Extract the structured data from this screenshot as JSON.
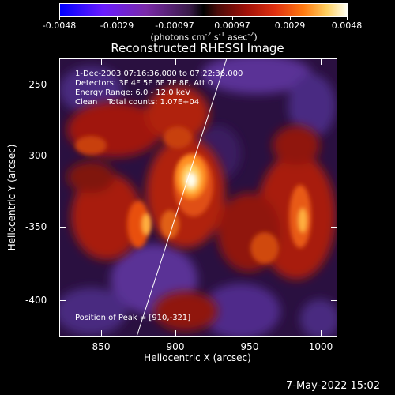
{
  "colorbar": {
    "ticks": [
      "-0.0048",
      "-0.0029",
      "-0.00097",
      "0.00097",
      "0.0029",
      "0.0048"
    ],
    "units_base": "(photons cm",
    "units_exp1": "-2",
    "units_mid": " s",
    "units_exp2": "-1",
    "units_mid2": " asec",
    "units_exp3": "-2",
    "units_end": ")"
  },
  "title": "Reconstructed RHESSI Image",
  "annotations": {
    "time_range": "1-Dec-2003 07:16:36.000 to 07:22:36.000",
    "detectors": "Detectors: 3F 4F 5F 6F 7F 8F, Att 0",
    "energy": "Energy Range: 6.0 - 12.0 keV",
    "clean": "Clean    Total counts: 1.07E+04",
    "peak": "Position of Peak = [910,-321]"
  },
  "axes": {
    "xlabel": "Heliocentric X (arcsec)",
    "ylabel": "Heliocentric Y (arcsec)",
    "xticks": [
      "850",
      "900",
      "950",
      "1000"
    ],
    "yticks": [
      "-250",
      "-300",
      "-350",
      "-400"
    ],
    "xlim": [
      818,
      1013
    ],
    "ylim": [
      -425,
      -230
    ]
  },
  "footer": {
    "timestamp": "7-May-2022 15:02"
  },
  "colors": {
    "accent": "#ffffff",
    "background": "#000000"
  }
}
